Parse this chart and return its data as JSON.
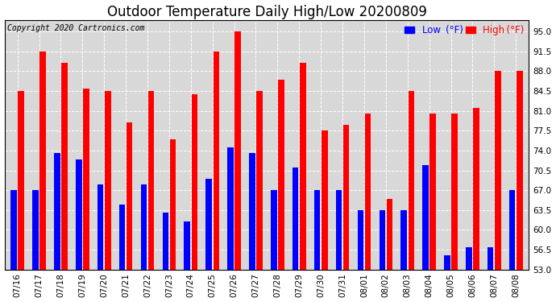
{
  "title": "Outdoor Temperature Daily High/Low 20200809",
  "copyright": "Copyright 2020 Cartronics.com",
  "dates": [
    "07/16",
    "07/17",
    "07/18",
    "07/19",
    "07/20",
    "07/21",
    "07/22",
    "07/23",
    "07/24",
    "07/25",
    "07/26",
    "07/27",
    "07/28",
    "07/29",
    "07/30",
    "07/31",
    "08/01",
    "08/02",
    "08/03",
    "08/04",
    "08/05",
    "08/06",
    "08/07",
    "08/08"
  ],
  "highs": [
    84.5,
    91.5,
    89.5,
    85.0,
    84.5,
    79.0,
    84.5,
    76.0,
    84.0,
    91.5,
    95.0,
    84.5,
    86.5,
    89.5,
    77.5,
    78.5,
    80.5,
    65.5,
    84.5,
    80.5,
    80.5,
    81.5,
    88.0,
    88.0
  ],
  "lows": [
    67.0,
    67.0,
    73.5,
    72.5,
    68.0,
    64.5,
    68.0,
    63.0,
    61.5,
    69.0,
    74.5,
    73.5,
    67.0,
    71.0,
    67.0,
    67.0,
    63.5,
    63.5,
    63.5,
    71.5,
    55.5,
    57.0,
    57.0,
    67.0
  ],
  "high_color": "#ff0000",
  "low_color": "#0000ff",
  "background_color": "#ffffff",
  "plot_bg_color": "#d8d8d8",
  "ylim_min": 53.0,
  "ylim_max": 97.0,
  "yticks": [
    53.0,
    56.5,
    60.0,
    63.5,
    67.0,
    70.5,
    74.0,
    77.5,
    81.0,
    84.5,
    88.0,
    91.5,
    95.0
  ],
  "bar_width": 0.28,
  "bar_gap": 0.06,
  "title_fontsize": 12,
  "tick_fontsize": 7.5,
  "legend_fontsize": 8.5,
  "copyright_fontsize": 7
}
